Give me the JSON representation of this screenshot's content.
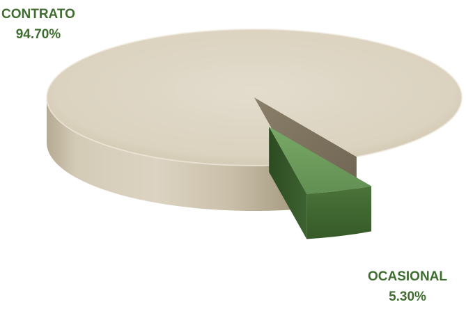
{
  "chart_data": {
    "type": "pie",
    "style": "3d-exploded",
    "slices": [
      {
        "label": "CONTRATO",
        "value": 94.7,
        "value_label": "94.70%",
        "color": "#dad1bf"
      },
      {
        "label": "OCASIONAL",
        "value": 5.3,
        "value_label": "5.30%",
        "color": "#6b9a5c"
      }
    ],
    "label_color": "#3f6d2f"
  }
}
